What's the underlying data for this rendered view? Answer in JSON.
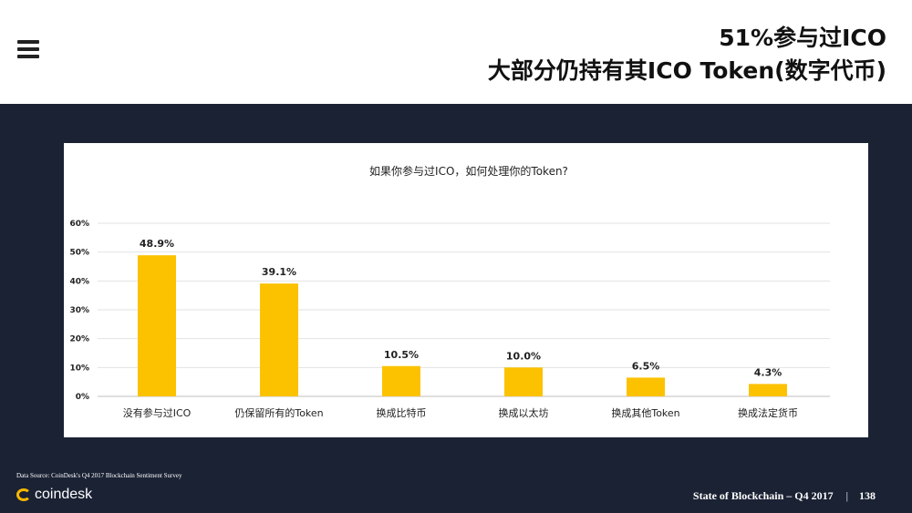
{
  "header": {
    "title_line1": "51%参与过ICO",
    "title_line2": "大部分仍持有其ICO Token(数字代币)"
  },
  "chart_data": {
    "type": "bar",
    "title": "如果你参与过ICO，如何处理你的Token?",
    "categories": [
      "没有参与过ICO",
      "仍保留所有的Token",
      "换成比特币",
      "换成以太坊",
      "换成其他Token",
      "换成法定货币"
    ],
    "values": [
      48.9,
      39.1,
      10.5,
      10.0,
      6.5,
      4.3
    ],
    "value_labels": [
      "48.9%",
      "39.1%",
      "10.5%",
      "10.0%",
      "6.5%",
      "4.3%"
    ],
    "yticks": [
      "0%",
      "10%",
      "20%",
      "30%",
      "40%",
      "50%",
      "60%"
    ],
    "ylim": [
      0,
      60
    ],
    "grid": true,
    "bar_color": "#fcc200"
  },
  "footer": {
    "source": "Data Source: CoinDesk's Q4 2017 Blockchain Sentiment Survey",
    "logo": "coindesk",
    "report": "State of Blockchain – Q4 2017",
    "separator": "|",
    "page_number": "138"
  },
  "colors": {
    "background": "#1b2234",
    "accent": "#fcc200"
  }
}
